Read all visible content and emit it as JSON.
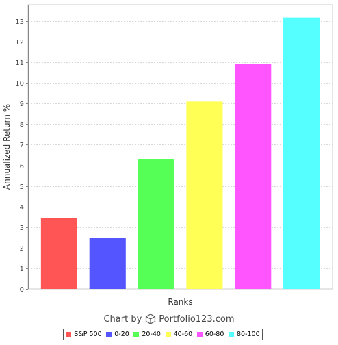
{
  "chart_data": {
    "type": "bar",
    "title": "",
    "xlabel": "Ranks",
    "ylabel": "Annualized Return %",
    "categories": [
      "S&P 500",
      "0-20",
      "20-40",
      "40-60",
      "60-80",
      "80-100"
    ],
    "values": [
      3.43,
      2.47,
      6.3,
      9.1,
      10.92,
      13.18
    ],
    "colors": [
      "#ff5555",
      "#5555ff",
      "#55ff55",
      "#ffff55",
      "#ff55ff",
      "#55ffff"
    ],
    "ylim": [
      0,
      13.8
    ],
    "yticks": [
      0,
      1,
      2,
      3,
      4,
      5,
      6,
      7,
      8,
      9,
      10,
      11,
      12,
      13
    ],
    "grid": true,
    "legend_position": "bottom"
  },
  "footer": {
    "prefix": "Chart by",
    "brand": "Portfolio123.com",
    "icon": "cube-icon"
  }
}
